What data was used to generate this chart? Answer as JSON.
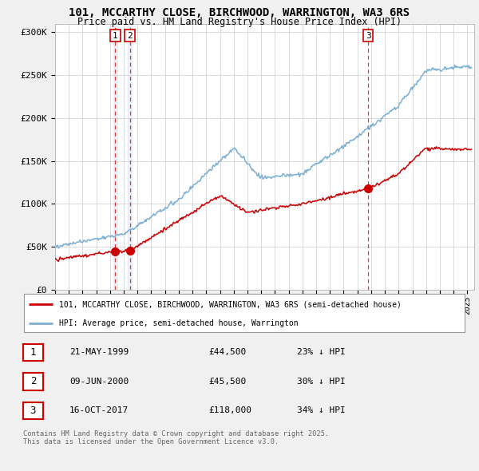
{
  "title_line1": "101, MCCARTHY CLOSE, BIRCHWOOD, WARRINGTON, WA3 6RS",
  "title_line2": "Price paid vs. HM Land Registry's House Price Index (HPI)",
  "ylabel_ticks": [
    "£0",
    "£50K",
    "£100K",
    "£150K",
    "£200K",
    "£250K",
    "£300K"
  ],
  "ytick_values": [
    0,
    50000,
    100000,
    150000,
    200000,
    250000,
    300000
  ],
  "ylim": [
    0,
    310000
  ],
  "xlim_start": 1995.0,
  "xlim_end": 2025.5,
  "sale_color": "#cc0000",
  "hpi_color": "#7bafd4",
  "background_color": "#f0f0f0",
  "plot_bg_color": "#ffffff",
  "transaction_markers": [
    {
      "date_num": 1999.38,
      "price": 44500,
      "label": "1"
    },
    {
      "date_num": 2000.44,
      "price": 45500,
      "label": "2"
    },
    {
      "date_num": 2017.79,
      "price": 118000,
      "label": "3"
    }
  ],
  "legend_label_red": "101, MCCARTHY CLOSE, BIRCHWOOD, WARRINGTON, WA3 6RS (semi-detached house)",
  "legend_label_blue": "HPI: Average price, semi-detached house, Warrington",
  "table_data": [
    {
      "num": "1",
      "date": "21-MAY-1999",
      "price": "£44,500",
      "hpi": "23% ↓ HPI"
    },
    {
      "num": "2",
      "date": "09-JUN-2000",
      "price": "£45,500",
      "hpi": "30% ↓ HPI"
    },
    {
      "num": "3",
      "date": "16-OCT-2017",
      "price": "£118,000",
      "hpi": "34% ↓ HPI"
    }
  ],
  "footer_text": "Contains HM Land Registry data © Crown copyright and database right 2025.\nThis data is licensed under the Open Government Licence v3.0.",
  "xtick_years": [
    1995,
    1996,
    1997,
    1998,
    1999,
    2000,
    2001,
    2002,
    2003,
    2004,
    2005,
    2006,
    2007,
    2008,
    2009,
    2010,
    2011,
    2012,
    2013,
    2014,
    2015,
    2016,
    2017,
    2018,
    2019,
    2020,
    2021,
    2022,
    2023,
    2024,
    2025
  ]
}
